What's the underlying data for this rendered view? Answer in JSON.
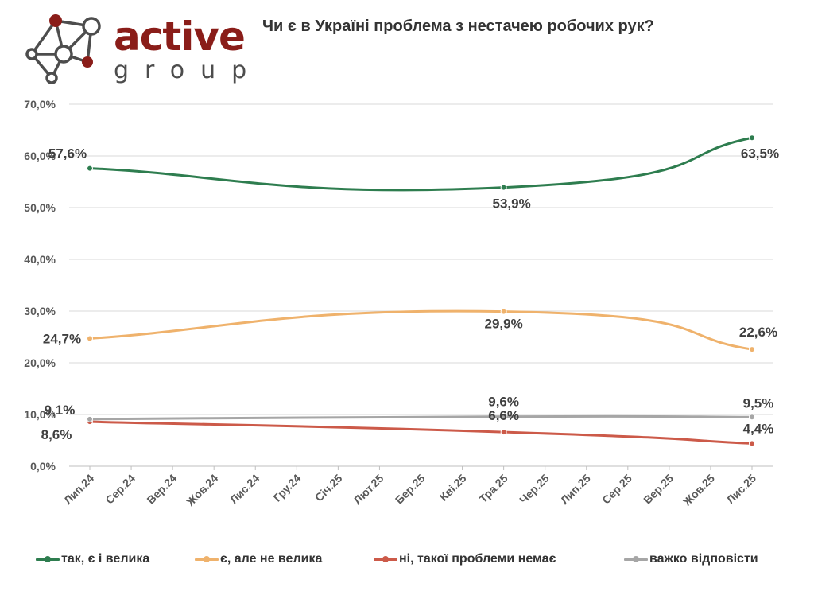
{
  "logo": {
    "main": "active",
    "sub": "group"
  },
  "chart_data": {
    "type": "line",
    "title": "Чи є в Україні проблема з нестачею робочих рук?",
    "categories": [
      "Лип.24",
      "Сер.24",
      "Вер.24",
      "Жов.24",
      "Лис.24",
      "Гру.24",
      "Січ.25",
      "Лют.25",
      "Бер.25",
      "Кві.25",
      "Тра.25",
      "Чер.25",
      "Лип.25",
      "Сер.25",
      "Вер.25",
      "Жов.25",
      "Лис.25"
    ],
    "ylim": [
      0,
      70
    ],
    "yticks": [
      "0,0%",
      "10,0%",
      "20,0%",
      "30,0%",
      "40,0%",
      "50,0%",
      "60,0%",
      "70,0%"
    ],
    "grid": true,
    "legend_position": "bottom",
    "series": [
      {
        "name": "так, є і велика",
        "color": "#2e7d4f",
        "points": [
          {
            "x": "Лип.24",
            "y": 57.6,
            "label": "57,6%"
          },
          {
            "x": "Тра.25",
            "y": 53.9,
            "label": "53,9%"
          },
          {
            "x": "Лис.25",
            "y": 63.5,
            "label": "63,5%"
          }
        ]
      },
      {
        "name": "є, але не велика",
        "color": "#efb26c",
        "points": [
          {
            "x": "Лип.24",
            "y": 24.7,
            "label": "24,7%"
          },
          {
            "x": "Тра.25",
            "y": 29.9,
            "label": "29,9%"
          },
          {
            "x": "Лис.25",
            "y": 22.6,
            "label": "22,6%"
          }
        ]
      },
      {
        "name": "ні, такої проблеми немає",
        "color": "#cc5a49",
        "points": [
          {
            "x": "Лип.24",
            "y": 8.6,
            "label": "8,6%"
          },
          {
            "x": "Тра.25",
            "y": 6.6,
            "label": "6,6%"
          },
          {
            "x": "Лис.25",
            "y": 4.4,
            "label": "4,4%"
          }
        ]
      },
      {
        "name": "важко відповісти",
        "color": "#a6a6a6",
        "points": [
          {
            "x": "Лип.24",
            "y": 9.1,
            "label": "9,1%"
          },
          {
            "x": "Тра.25",
            "y": 9.6,
            "label": "9,6%"
          },
          {
            "x": "Лис.25",
            "y": 9.5,
            "label": "9,5%"
          }
        ]
      }
    ]
  }
}
